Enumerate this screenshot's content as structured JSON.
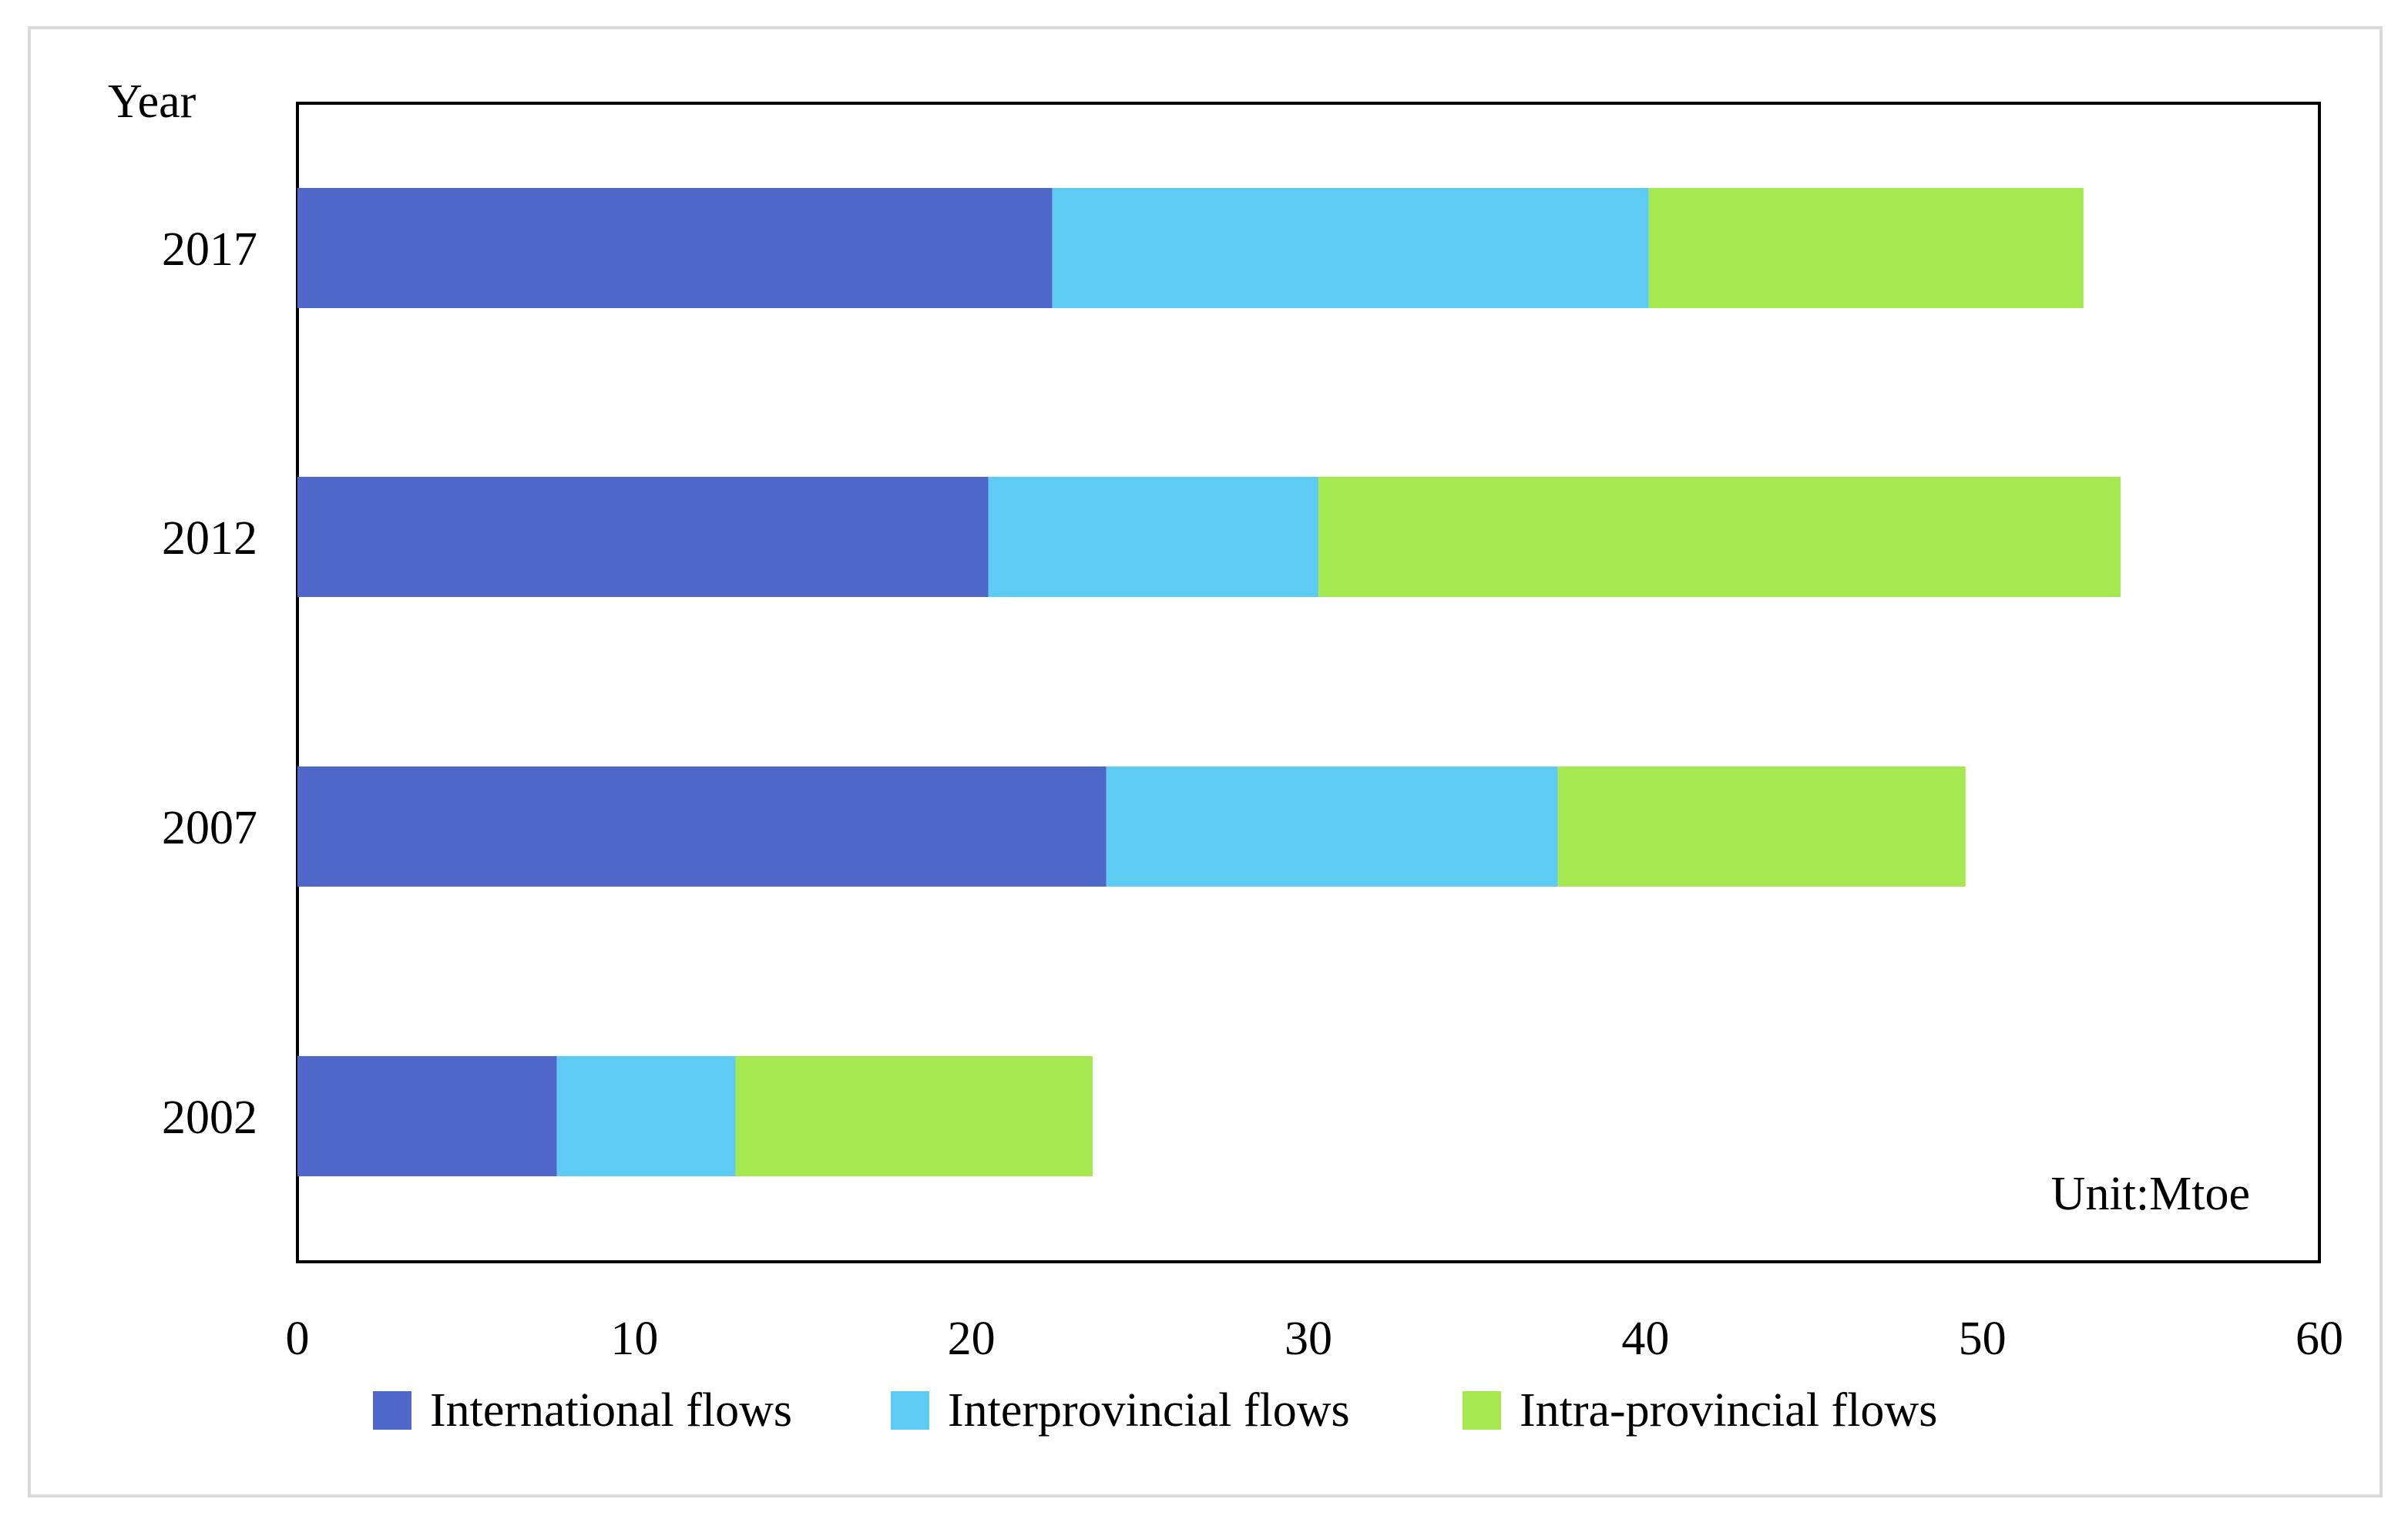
{
  "chart_data": {
    "type": "bar",
    "orientation": "horizontal",
    "stacked": true,
    "y_axis_label": "Year",
    "unit_label": "Unit:Mtoe",
    "categories": [
      "2017",
      "2012",
      "2007",
      "2002"
    ],
    "series": [
      {
        "name": "International flows",
        "color": "#4f67c8",
        "values": [
          22.4,
          20.5,
          24.0,
          7.7
        ]
      },
      {
        "name": "Interprovincial flows",
        "color": "#5ecbf2",
        "values": [
          17.7,
          9.8,
          13.4,
          5.3
        ]
      },
      {
        "name": "Intra-provincial flows",
        "color": "#a6e850",
        "values": [
          12.9,
          23.8,
          12.1,
          10.6
        ]
      }
    ],
    "x_ticks": [
      0,
      10,
      20,
      30,
      40,
      50,
      60
    ],
    "xlim": [
      0,
      60
    ],
    "grid": false,
    "legend_position": "bottom"
  }
}
